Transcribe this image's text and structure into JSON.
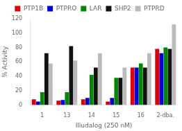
{
  "chart_data": {
    "type": "bar",
    "xlabel": "Illudalog (250 nM)",
    "ylabel": "% Activity",
    "categories": [
      "1",
      "13",
      "14",
      "15",
      "16",
      "2-dba."
    ],
    "series": [
      {
        "name": "PTP1B",
        "color": "#dd0000",
        "values": [
          8,
          6,
          8,
          5,
          52,
          78
        ]
      },
      {
        "name": "PTPRO",
        "color": "#0000dd",
        "values": [
          5,
          7,
          10,
          10,
          52,
          72
        ]
      },
      {
        "name": "LAR",
        "color": "#008800",
        "values": [
          18,
          18,
          42,
          38,
          58,
          80
        ]
      },
      {
        "name": "SHP2",
        "color": "#111111",
        "values": [
          72,
          82,
          52,
          38,
          52,
          78
        ]
      },
      {
        "name": "PTPRD",
        "color": "#bbbbbb",
        "values": [
          58,
          62,
          72,
          52,
          72,
          112
        ]
      }
    ],
    "ylim": [
      0,
      120
    ],
    "yticks": [
      0,
      20,
      40,
      60,
      80,
      100,
      120
    ],
    "grid": false,
    "legend": "top"
  }
}
